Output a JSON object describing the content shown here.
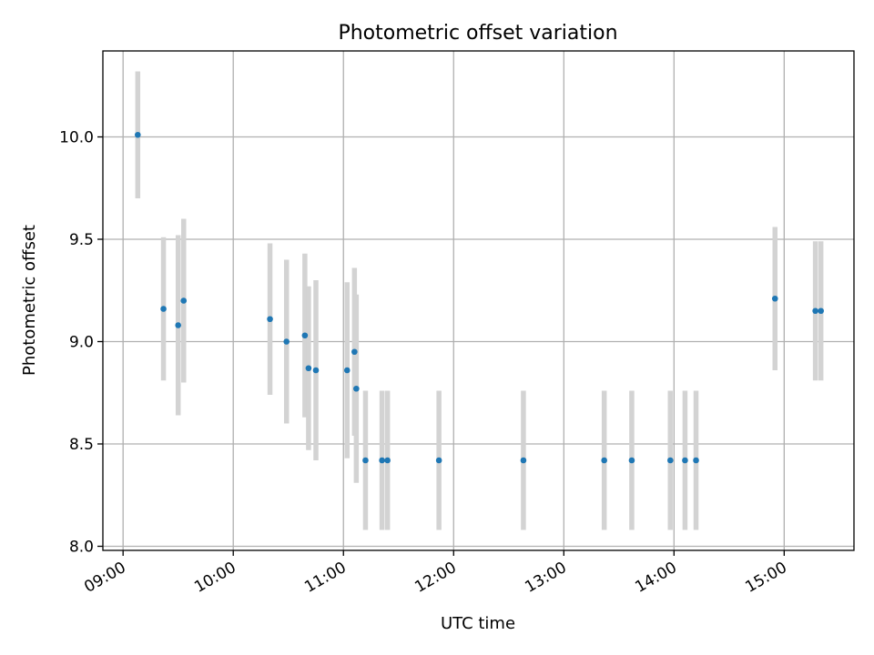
{
  "chart_data": {
    "type": "scatter",
    "title": "Photometric offset variation",
    "xlabel": "UTC time",
    "ylabel": "Photometric offset",
    "xlim": [
      "08:49",
      "15:38"
    ],
    "ylim": [
      7.98,
      10.42
    ],
    "x_ticks": [
      "09:00",
      "10:00",
      "11:00",
      "12:00",
      "13:00",
      "14:00",
      "15:00"
    ],
    "y_ticks": [
      "8.0",
      "8.5",
      "9.0",
      "9.5",
      "10.0"
    ],
    "grid": true,
    "colors": {
      "points": "#1f77b4",
      "error_bars": "#d3d3d3"
    },
    "series": [
      {
        "points": [
          {
            "x": "09:08",
            "y": 10.01,
            "err": 0.31
          },
          {
            "x": "09:22",
            "y": 9.16,
            "err": 0.35
          },
          {
            "x": "09:30",
            "y": 9.08,
            "err": 0.44
          },
          {
            "x": "09:33",
            "y": 9.2,
            "err": 0.4
          },
          {
            "x": "10:20",
            "y": 9.11,
            "err": 0.37
          },
          {
            "x": "10:29",
            "y": 9.0,
            "err": 0.4
          },
          {
            "x": "10:39",
            "y": 9.03,
            "err": 0.4
          },
          {
            "x": "10:41",
            "y": 8.87,
            "err": 0.4
          },
          {
            "x": "10:45",
            "y": 8.86,
            "err": 0.44
          },
          {
            "x": "11:02",
            "y": 8.86,
            "err": 0.43
          },
          {
            "x": "11:06",
            "y": 8.95,
            "err": 0.41
          },
          {
            "x": "11:07",
            "y": 8.77,
            "err": 0.46
          },
          {
            "x": "11:12",
            "y": 8.42,
            "err": 0.34
          },
          {
            "x": "11:21",
            "y": 8.42,
            "err": 0.34
          },
          {
            "x": "11:24",
            "y": 8.42,
            "err": 0.34
          },
          {
            "x": "11:52",
            "y": 8.42,
            "err": 0.34
          },
          {
            "x": "12:38",
            "y": 8.42,
            "err": 0.34
          },
          {
            "x": "13:22",
            "y": 8.42,
            "err": 0.34
          },
          {
            "x": "13:37",
            "y": 8.42,
            "err": 0.34
          },
          {
            "x": "13:58",
            "y": 8.42,
            "err": 0.34
          },
          {
            "x": "14:06",
            "y": 8.42,
            "err": 0.34
          },
          {
            "x": "14:12",
            "y": 8.42,
            "err": 0.34
          },
          {
            "x": "14:55",
            "y": 9.21,
            "err": 0.35
          },
          {
            "x": "15:17",
            "y": 9.15,
            "err": 0.34
          },
          {
            "x": "15:20",
            "y": 9.15,
            "err": 0.34
          }
        ]
      }
    ]
  }
}
